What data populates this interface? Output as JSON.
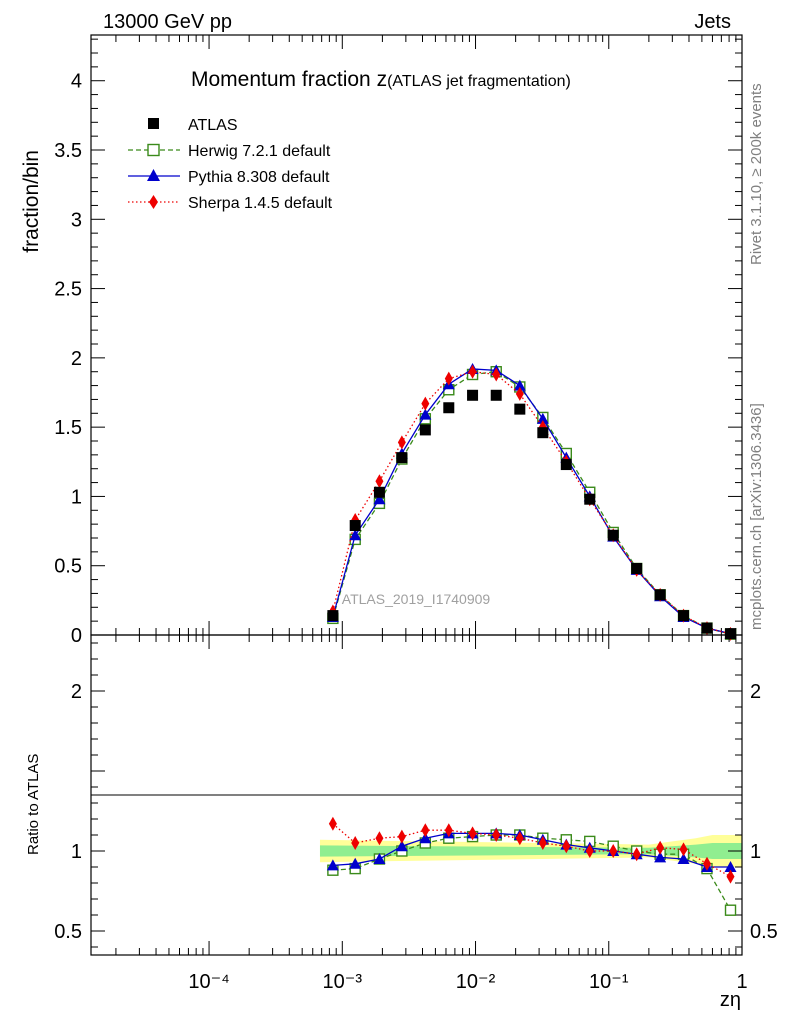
{
  "header": {
    "energy_label": "13000 GeV pp",
    "category_label": "Jets",
    "side_label_rivet": "Rivet 3.1.10, ≥ 200k events",
    "side_label_source": "mcplots.cern.ch [arXiv:1306.3436]",
    "watermark": "ATLAS_2019_I1740909"
  },
  "colors": {
    "data": "#000000",
    "herwig": "#3a8a1a",
    "pythia": "#0000cc",
    "sherpa": "#ee0000",
    "band_inner": "#90ee90",
    "band_outer": "#ffff99"
  },
  "chart_data": [
    {
      "type": "scatter",
      "panel": "main",
      "title_main": "Momentum fraction z",
      "title_sub": "(ATLAS jet fragmentation)",
      "ylabel": "fraction/bin",
      "xscale": "log",
      "xlim": [
        1.3e-05,
        1.0
      ],
      "ylim": [
        0,
        4.33
      ],
      "y_ticks": [
        "0",
        "0.5",
        "1",
        "1.5",
        "2",
        "2.5",
        "3",
        "3.5",
        "4"
      ],
      "y_tick_values": [
        0,
        0.5,
        1,
        1.5,
        2,
        2.5,
        3,
        3.5,
        4
      ],
      "x": [
        0.00085,
        0.00125,
        0.0019,
        0.0028,
        0.0042,
        0.0063,
        0.0095,
        0.0143,
        0.0215,
        0.032,
        0.048,
        0.072,
        0.108,
        0.162,
        0.243,
        0.364,
        0.546,
        0.82
      ],
      "legend_position": "top-left",
      "series": [
        {
          "name": "ATLAS",
          "key": "data",
          "marker": "square-filled",
          "line": "none",
          "values": [
            0.14,
            0.79,
            1.03,
            1.28,
            1.48,
            1.64,
            1.73,
            1.73,
            1.63,
            1.46,
            1.23,
            0.98,
            0.72,
            0.48,
            0.29,
            0.14,
            0.05,
            0.01
          ]
        },
        {
          "name": "Herwig 7.2.1 default",
          "key": "herwig",
          "marker": "square-open",
          "line": "dashed",
          "values": [
            0.12,
            0.69,
            0.95,
            1.27,
            1.56,
            1.77,
            1.88,
            1.9,
            1.79,
            1.57,
            1.31,
            1.03,
            0.74,
            0.48,
            0.29,
            0.14,
            0.05,
            0.006
          ]
        },
        {
          "name": "Pythia 8.308 default",
          "key": "pythia",
          "marker": "triangle",
          "line": "solid",
          "values": [
            0.13,
            0.72,
            0.98,
            1.31,
            1.59,
            1.81,
            1.92,
            1.91,
            1.8,
            1.56,
            1.28,
            1.0,
            0.71,
            0.47,
            0.28,
            0.13,
            0.05,
            0.01
          ]
        },
        {
          "name": "Sherpa 1.4.5 default",
          "key": "sherpa",
          "marker": "diamond",
          "line": "dotted",
          "values": [
            0.17,
            0.83,
            1.11,
            1.39,
            1.67,
            1.85,
            1.9,
            1.88,
            1.74,
            1.5,
            1.25,
            0.98,
            0.72,
            0.47,
            0.29,
            0.14,
            0.05,
            0.008
          ]
        }
      ]
    },
    {
      "type": "scatter",
      "panel": "ratio",
      "ylabel": "Ratio to ATLAS",
      "xlabel": "zη",
      "xscale": "log",
      "xlim": [
        1.3e-05,
        1.0
      ],
      "ylim": [
        0.35,
        2.35
      ],
      "y_ticks": [
        "0.5",
        "1",
        "2"
      ],
      "y_tick_values": [
        0.5,
        1,
        2
      ],
      "x_ticks": [
        "10⁻⁴",
        "10⁻³",
        "10⁻²",
        "10⁻¹",
        "1"
      ],
      "x_tick_values": [
        0.0001,
        0.001,
        0.01,
        0.1,
        1
      ],
      "x": [
        0.00085,
        0.00125,
        0.0019,
        0.0028,
        0.0042,
        0.0063,
        0.0095,
        0.0143,
        0.0215,
        0.032,
        0.048,
        0.072,
        0.108,
        0.162,
        0.243,
        0.364,
        0.546,
        0.82
      ],
      "band_x": [
        0.00068,
        0.2,
        0.3,
        0.45,
        0.6,
        1.0
      ],
      "band_inner_halfwidth": [
        0.035,
        0.02,
        0.03,
        0.04,
        0.05,
        0.05
      ],
      "band_outer_halfwidth": [
        0.07,
        0.04,
        0.06,
        0.08,
        0.1,
        0.1
      ],
      "series": [
        {
          "name": "Herwig 7.2.1 default",
          "key": "herwig",
          "values": [
            0.88,
            0.89,
            0.95,
            1.0,
            1.05,
            1.08,
            1.09,
            1.1,
            1.1,
            1.08,
            1.07,
            1.06,
            1.03,
            1.0,
            0.98,
            0.98,
            0.89,
            0.63
          ]
        },
        {
          "name": "Pythia 8.308 default",
          "key": "pythia",
          "values": [
            0.91,
            0.92,
            0.95,
            1.03,
            1.08,
            1.11,
            1.11,
            1.11,
            1.1,
            1.07,
            1.04,
            1.02,
            1.0,
            0.98,
            0.96,
            0.95,
            0.9,
            0.9
          ]
        },
        {
          "name": "Sherpa 1.4.5 default",
          "key": "sherpa",
          "values": [
            1.17,
            1.05,
            1.08,
            1.09,
            1.13,
            1.13,
            1.11,
            1.1,
            1.08,
            1.05,
            1.03,
            1.0,
            1.0,
            0.98,
            1.02,
            1.01,
            0.92,
            0.84
          ]
        }
      ]
    }
  ]
}
